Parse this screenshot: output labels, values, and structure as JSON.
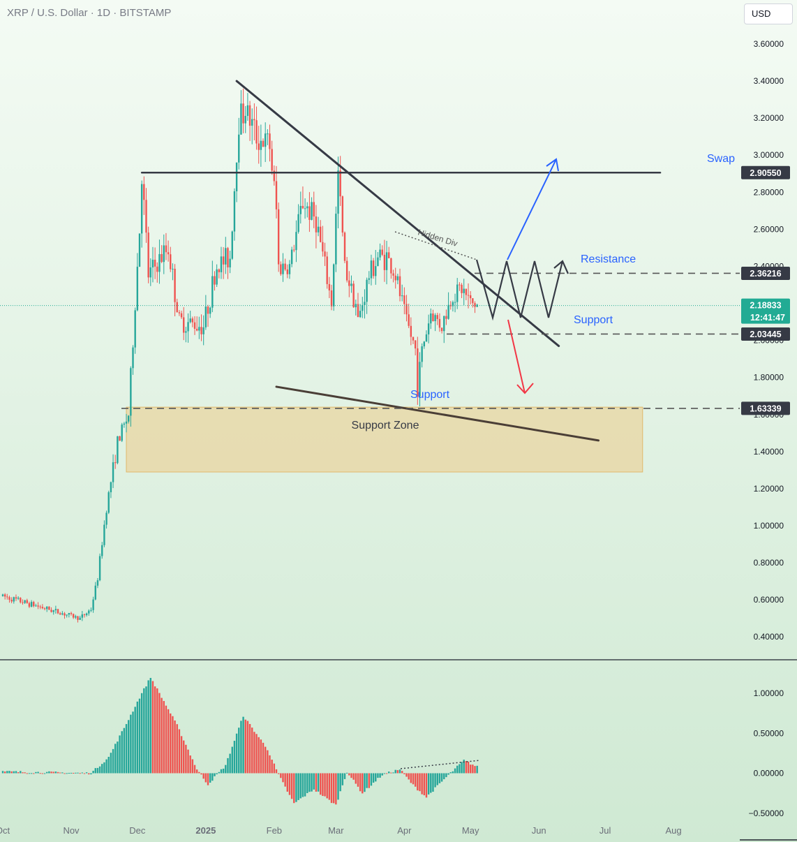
{
  "header": {
    "symbol_title": "XRP / U.S. Dollar · 1D · BITSTAMP",
    "currency_button": "USD"
  },
  "colors": {
    "bull": "#26a69a",
    "bear": "#ef5350",
    "trendline": "#363a45",
    "blue_annotation": "#2962ff",
    "red_annotation": "#f23645",
    "support_zone_fill": "#e8d7a5",
    "last_price_tag": "#22ab94",
    "background_top": "#f4fbf4",
    "background_bottom": "#cfe9d3"
  },
  "chart_data": [
    {
      "type": "candlestick",
      "title": "XRP / U.S. Dollar · 1D · BITSTAMP",
      "y_scale": "linear",
      "ylim": [
        0.24,
        3.64
      ],
      "y_ticks": [
        "0.40000",
        "0.60000",
        "0.80000",
        "1.00000",
        "1.20000",
        "1.40000",
        "1.60000",
        "1.80000",
        "2.00000",
        "2.20000",
        "2.40000",
        "2.60000",
        "2.80000",
        "3.00000",
        "3.20000",
        "3.40000",
        "3.60000"
      ],
      "x_ticks": [
        "Oct",
        "Nov",
        "Dec",
        "2025",
        "Feb",
        "Mar",
        "Apr",
        "May",
        "Jun",
        "Jul",
        "Aug"
      ],
      "x_tick_dates": [
        "2024-10-01",
        "2024-11-01",
        "2024-12-01",
        "2025-01-01",
        "2025-02-01",
        "2025-03-01",
        "2025-04-01",
        "2025-05-01",
        "2025-06-01",
        "2025-07-01",
        "2025-08-01"
      ],
      "x_range": [
        "2024-10-01",
        "2025-08-24"
      ],
      "ohlc_key_points": [
        {
          "date": "2024-10-01",
          "close": 0.62
        },
        {
          "date": "2024-11-05",
          "close": 0.5
        },
        {
          "date": "2024-11-10",
          "close": 0.55
        },
        {
          "date": "2024-11-13",
          "close": 0.72
        },
        {
          "date": "2024-11-17",
          "close": 1.1
        },
        {
          "date": "2024-11-22",
          "close": 1.45
        },
        {
          "date": "2024-11-27",
          "close": 1.6
        },
        {
          "date": "2024-12-02",
          "close": 2.6
        },
        {
          "date": "2024-12-03",
          "close": 2.9
        },
        {
          "date": "2024-12-06",
          "close": 2.35
        },
        {
          "date": "2024-12-15",
          "close": 2.5
        },
        {
          "date": "2024-12-20",
          "close": 2.1
        },
        {
          "date": "2024-12-31",
          "close": 2.08
        },
        {
          "date": "2025-01-06",
          "close": 2.4
        },
        {
          "date": "2025-01-12",
          "close": 2.45
        },
        {
          "date": "2025-01-16",
          "close": 3.2
        },
        {
          "date": "2025-01-19",
          "close": 3.25
        },
        {
          "date": "2025-01-24",
          "close": 3.1
        },
        {
          "date": "2025-01-30",
          "close": 3.05
        },
        {
          "date": "2025-02-02",
          "close": 2.7
        },
        {
          "date": "2025-02-03",
          "close": 2.4
        },
        {
          "date": "2025-02-08",
          "close": 2.4
        },
        {
          "date": "2025-02-14",
          "close": 2.75
        },
        {
          "date": "2025-02-20",
          "close": 2.65
        },
        {
          "date": "2025-02-27",
          "close": 2.2
        },
        {
          "date": "2025-03-02",
          "close": 2.9
        },
        {
          "date": "2025-03-05",
          "close": 2.4
        },
        {
          "date": "2025-03-10",
          "close": 2.2
        },
        {
          "date": "2025-03-11",
          "close": 2.1
        },
        {
          "date": "2025-03-16",
          "close": 2.35
        },
        {
          "date": "2025-03-20",
          "close": 2.45
        },
        {
          "date": "2025-03-24",
          "close": 2.45
        },
        {
          "date": "2025-03-28",
          "close": 2.35
        },
        {
          "date": "2025-04-02",
          "close": 2.1
        },
        {
          "date": "2025-04-06",
          "close": 1.95
        },
        {
          "date": "2025-04-07",
          "close": 1.75
        },
        {
          "date": "2025-04-09",
          "close": 1.95
        },
        {
          "date": "2025-04-13",
          "close": 2.15
        },
        {
          "date": "2025-04-18",
          "close": 2.08
        },
        {
          "date": "2025-04-23",
          "close": 2.25
        },
        {
          "date": "2025-04-27",
          "close": 2.28
        },
        {
          "date": "2025-05-01",
          "close": 2.2
        },
        {
          "date": "2025-05-04",
          "close": 2.19
        }
      ],
      "price_levels": [
        {
          "label": "Swap",
          "value": "2.90550"
        },
        {
          "label": "Resistance",
          "value": "2.36216"
        },
        {
          "label": "Support",
          "value": "2.03445"
        },
        {
          "label": "Support",
          "value": "1.63339"
        }
      ],
      "last_price": {
        "value": "2.18833",
        "countdown": "12:41:47"
      },
      "annotations": {
        "swap_label": "Swap",
        "resistance_label": "Resistance",
        "support_label": "Support",
        "support_low_label": "Support",
        "support_zone_label": "Support Zone",
        "hidden_div_label": "Hidden Div"
      },
      "support_zone": {
        "low": 1.29,
        "high": 1.64,
        "from": "2024-11-26",
        "to": "2025-07-18"
      },
      "trendlines": [
        {
          "name": "descending-resistance",
          "from": {
            "date": "2025-01-15",
            "price": 3.4
          },
          "to": {
            "date": "2025-06-10",
            "price": 1.97
          }
        },
        {
          "name": "lower-support",
          "from": {
            "date": "2025-02-02",
            "price": 1.75
          },
          "to": {
            "date": "2025-06-28",
            "price": 1.46
          }
        },
        {
          "name": "swap-level",
          "from": {
            "date": "2024-12-03",
            "price": 2.9055
          },
          "to": {
            "date": "2025-07-26",
            "price": 2.9055
          }
        }
      ]
    },
    {
      "type": "bar",
      "title": "",
      "ylim": [
        -0.62,
        1.28
      ],
      "y_ticks": [
        "1.00000",
        "0.50000",
        "0.00000",
        "−0.50000"
      ],
      "histogram_key_points": [
        {
          "date": "2024-10-01",
          "value": 0.02
        },
        {
          "date": "2024-11-10",
          "value": 0.0
        },
        {
          "date": "2024-11-18",
          "value": 0.2
        },
        {
          "date": "2024-11-26",
          "value": 0.62
        },
        {
          "date": "2024-12-03",
          "value": 1.0
        },
        {
          "date": "2024-12-07",
          "value": 1.2
        },
        {
          "date": "2024-12-19",
          "value": 0.6
        },
        {
          "date": "2024-12-28",
          "value": 0.05
        },
        {
          "date": "2025-01-02",
          "value": -0.14
        },
        {
          "date": "2025-01-10",
          "value": 0.1
        },
        {
          "date": "2025-01-18",
          "value": 0.72
        },
        {
          "date": "2025-01-29",
          "value": 0.3
        },
        {
          "date": "2025-02-03",
          "value": -0.02
        },
        {
          "date": "2025-02-10",
          "value": -0.38
        },
        {
          "date": "2025-02-19",
          "value": -0.2
        },
        {
          "date": "2025-03-01",
          "value": -0.4
        },
        {
          "date": "2025-03-06",
          "value": 0.02
        },
        {
          "date": "2025-03-13",
          "value": -0.25
        },
        {
          "date": "2025-03-22",
          "value": -0.02
        },
        {
          "date": "2025-03-30",
          "value": 0.05
        },
        {
          "date": "2025-04-05",
          "value": -0.15
        },
        {
          "date": "2025-04-11",
          "value": -0.3
        },
        {
          "date": "2025-04-20",
          "value": -0.05
        },
        {
          "date": "2025-04-28",
          "value": 0.16
        },
        {
          "date": "2025-05-04",
          "value": 0.08
        }
      ]
    }
  ]
}
